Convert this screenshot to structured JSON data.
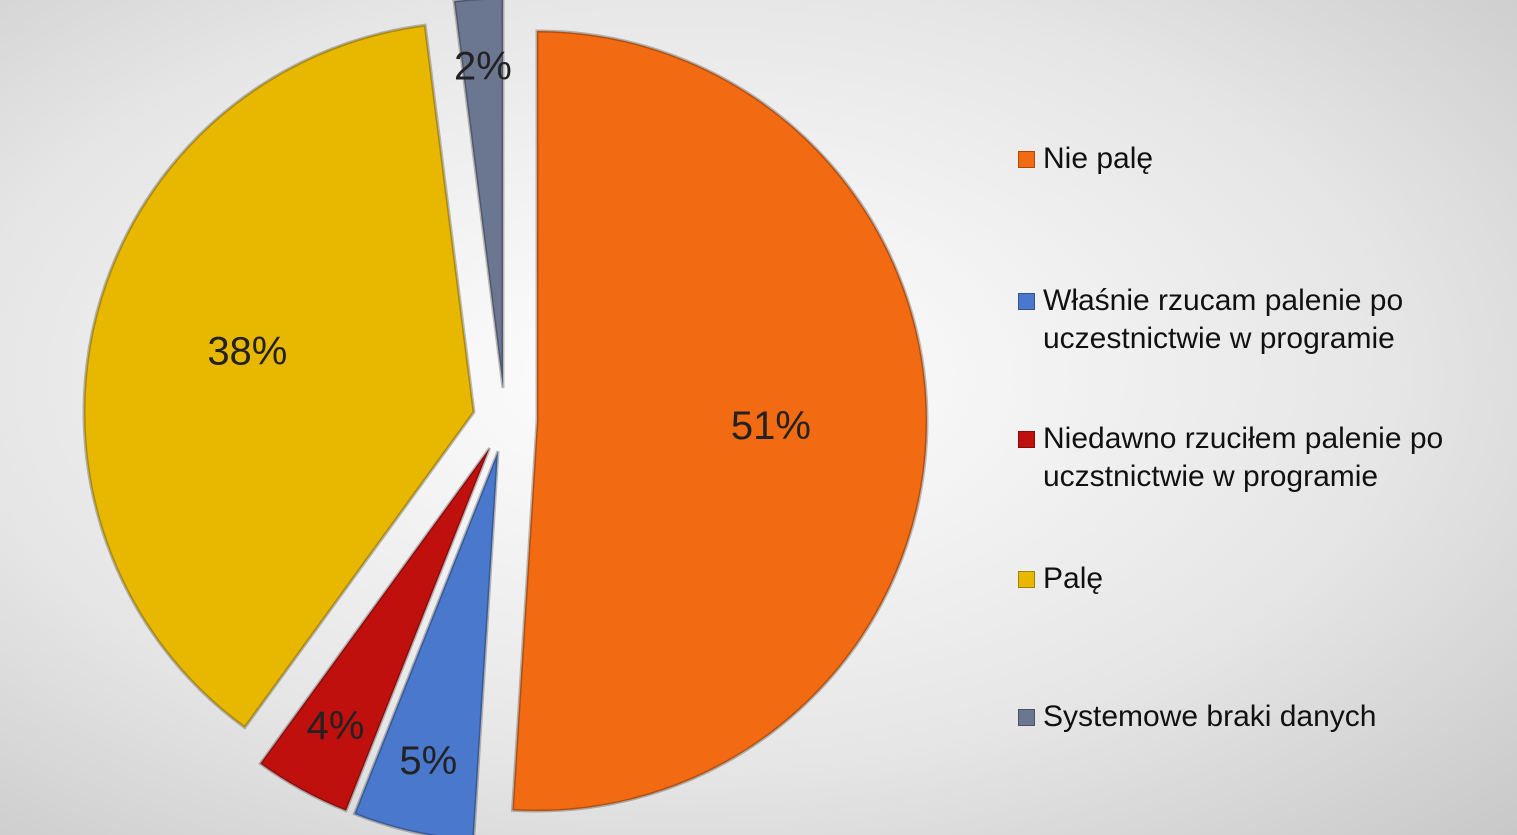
{
  "chart_data": {
    "type": "pie",
    "categories": [
      "Nie palę",
      "Właśnie rzucam palenie po uczestnictwie w programie",
      "Niedawno rzuciłem palenie po uczstnictwie w programie",
      "Palę",
      "Systemowe braki danych"
    ],
    "values": [
      51,
      5,
      4,
      38,
      2
    ],
    "value_labels": [
      "51%",
      "5%",
      "4%",
      "38%",
      "2%"
    ],
    "colors": [
      "#f26a12",
      "#4a78cc",
      "#c0100e",
      "#e8b800",
      "#6b7690"
    ],
    "legend": "right"
  }
}
